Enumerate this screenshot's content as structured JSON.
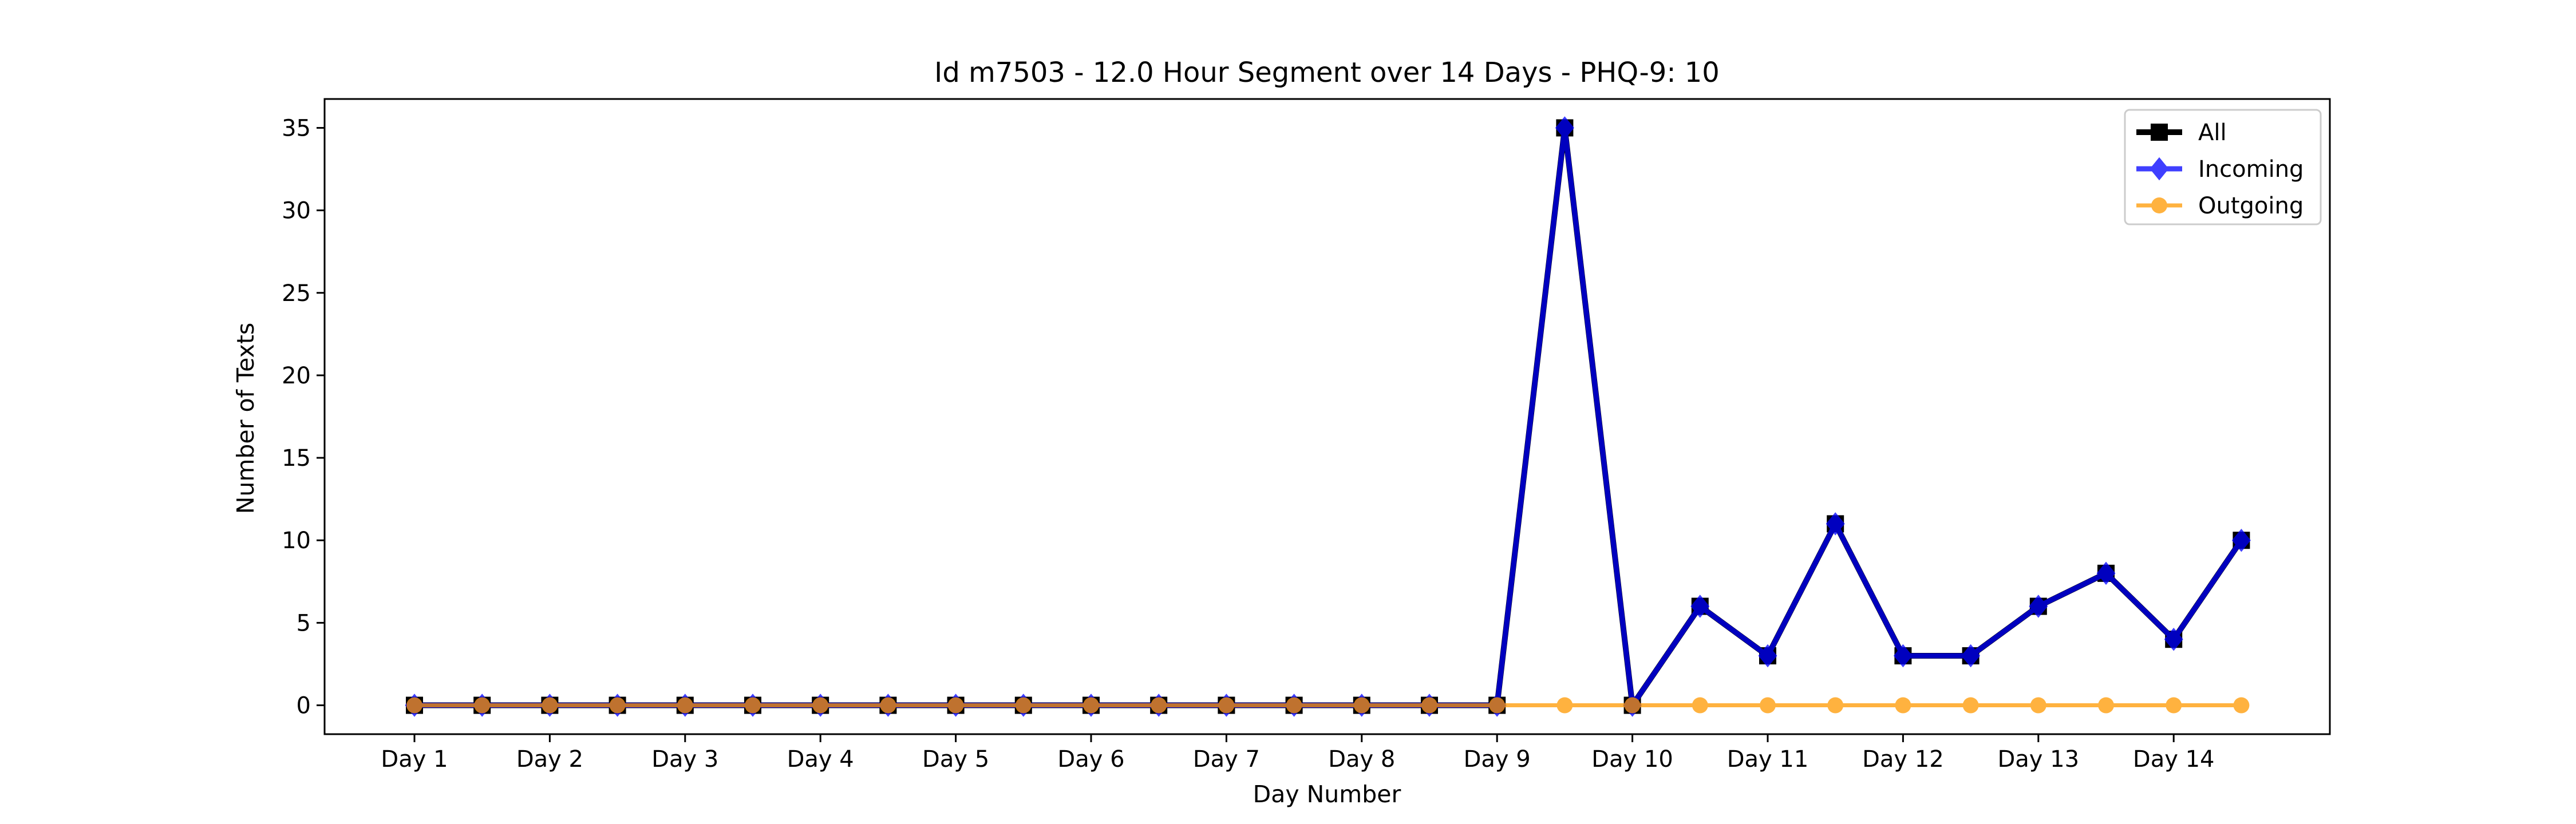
{
  "chart_data": {
    "type": "line",
    "title": "Id m7503 - 12.0 Hour Segment over 14 Days - PHQ-9: 10",
    "xlabel": "Day Number",
    "ylabel": "Number of Texts",
    "x_tick_labels": [
      "Day 1",
      "Day 2",
      "Day 3",
      "Day 4",
      "Day 5",
      "Day 6",
      "Day 7",
      "Day 8",
      "Day 9",
      "Day 10",
      "Day 11",
      "Day 12",
      "Day 13",
      "Day 14"
    ],
    "y_ticks": [
      0,
      5,
      10,
      15,
      20,
      25,
      30,
      35
    ],
    "ylim": [
      -1.75,
      36.75
    ],
    "grid": false,
    "legend_position": "top-right",
    "x_labels": [
      "Day 1",
      "",
      "Day 2",
      "",
      "Day 3",
      "",
      "Day 4",
      "",
      "Day 5",
      "",
      "Day 6",
      "",
      "Day 7",
      "",
      "Day 8",
      "",
      "Day 9",
      "",
      "Day 10",
      "",
      "Day 11",
      "",
      "Day 12",
      "",
      "Day 13",
      "",
      "Day 14",
      ""
    ],
    "series": [
      {
        "name": "All",
        "color": "#000000",
        "marker": "square",
        "values": [
          0,
          0,
          0,
          0,
          0,
          0,
          0,
          0,
          0,
          0,
          0,
          0,
          0,
          0,
          0,
          0,
          0,
          35,
          0,
          6,
          3,
          11,
          3,
          3,
          6,
          8,
          4,
          10
        ]
      },
      {
        "name": "Incoming",
        "color": "#0000ff",
        "marker": "diamond",
        "values": [
          0,
          0,
          0,
          0,
          0,
          0,
          0,
          0,
          0,
          0,
          0,
          0,
          0,
          0,
          0,
          0,
          0,
          35,
          0,
          6,
          3,
          11,
          3,
          3,
          6,
          8,
          4,
          10
        ]
      },
      {
        "name": "Outgoing",
        "color": "#ff9900",
        "marker": "circle",
        "values": [
          0,
          0,
          0,
          0,
          0,
          0,
          0,
          0,
          0,
          0,
          0,
          0,
          0,
          0,
          0,
          0,
          0,
          0,
          0,
          0,
          0,
          0,
          0,
          0,
          0,
          0,
          0,
          0
        ]
      }
    ]
  }
}
